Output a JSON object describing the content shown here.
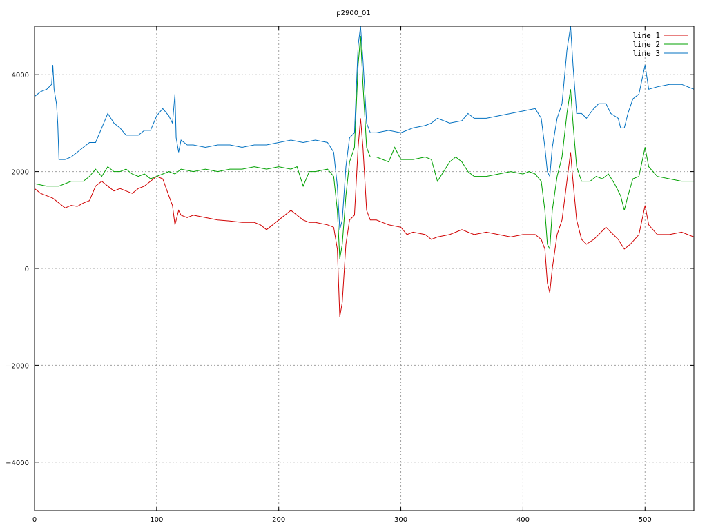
{
  "chart_data": {
    "type": "line",
    "title": "p2900_01",
    "xlabel": "",
    "ylabel": "",
    "xlim": [
      0,
      540
    ],
    "ylim": [
      -5000,
      5000
    ],
    "xticks": [
      0,
      100,
      200,
      300,
      400,
      500
    ],
    "yticks": [
      -4000,
      -2000,
      0,
      2000,
      4000
    ],
    "ytick_labels": [
      "−4000",
      "−2000",
      "0",
      "2000",
      "4000"
    ],
    "grid": true,
    "legend_position": "top-right",
    "series": [
      {
        "name": "line 1",
        "color": "#d00000",
        "points": [
          [
            0,
            1650
          ],
          [
            5,
            1550
          ],
          [
            10,
            1500
          ],
          [
            15,
            1450
          ],
          [
            20,
            1350
          ],
          [
            25,
            1250
          ],
          [
            30,
            1300
          ],
          [
            35,
            1280
          ],
          [
            40,
            1350
          ],
          [
            45,
            1400
          ],
          [
            50,
            1700
          ],
          [
            55,
            1800
          ],
          [
            60,
            1700
          ],
          [
            65,
            1600
          ],
          [
            70,
            1650
          ],
          [
            75,
            1600
          ],
          [
            80,
            1550
          ],
          [
            85,
            1650
          ],
          [
            90,
            1700
          ],
          [
            95,
            1800
          ],
          [
            100,
            1900
          ],
          [
            105,
            1850
          ],
          [
            110,
            1500
          ],
          [
            113,
            1300
          ],
          [
            115,
            900
          ],
          [
            118,
            1200
          ],
          [
            120,
            1100
          ],
          [
            125,
            1050
          ],
          [
            130,
            1100
          ],
          [
            140,
            1050
          ],
          [
            150,
            1000
          ],
          [
            160,
            980
          ],
          [
            170,
            950
          ],
          [
            180,
            950
          ],
          [
            185,
            900
          ],
          [
            190,
            800
          ],
          [
            195,
            900
          ],
          [
            200,
            1000
          ],
          [
            205,
            1100
          ],
          [
            210,
            1200
          ],
          [
            215,
            1100
          ],
          [
            220,
            1000
          ],
          [
            225,
            950
          ],
          [
            230,
            950
          ],
          [
            240,
            900
          ],
          [
            245,
            850
          ],
          [
            248,
            400
          ],
          [
            250,
            -1000
          ],
          [
            252,
            -700
          ],
          [
            255,
            500
          ],
          [
            258,
            1000
          ],
          [
            262,
            1100
          ],
          [
            265,
            2500
          ],
          [
            267,
            3100
          ],
          [
            269,
            2500
          ],
          [
            272,
            1200
          ],
          [
            275,
            1000
          ],
          [
            280,
            1000
          ],
          [
            290,
            900
          ],
          [
            300,
            850
          ],
          [
            305,
            700
          ],
          [
            310,
            750
          ],
          [
            320,
            700
          ],
          [
            325,
            600
          ],
          [
            330,
            650
          ],
          [
            340,
            700
          ],
          [
            345,
            750
          ],
          [
            350,
            800
          ],
          [
            355,
            750
          ],
          [
            360,
            700
          ],
          [
            370,
            750
          ],
          [
            380,
            700
          ],
          [
            390,
            650
          ],
          [
            400,
            700
          ],
          [
            410,
            700
          ],
          [
            415,
            600
          ],
          [
            418,
            400
          ],
          [
            420,
            -300
          ],
          [
            422,
            -500
          ],
          [
            424,
            0
          ],
          [
            428,
            700
          ],
          [
            432,
            1000
          ],
          [
            436,
            1800
          ],
          [
            439,
            2400
          ],
          [
            441,
            1800
          ],
          [
            444,
            1000
          ],
          [
            448,
            600
          ],
          [
            452,
            500
          ],
          [
            458,
            600
          ],
          [
            462,
            700
          ],
          [
            468,
            850
          ],
          [
            472,
            750
          ],
          [
            478,
            600
          ],
          [
            483,
            400
          ],
          [
            488,
            500
          ],
          [
            495,
            700
          ],
          [
            500,
            1300
          ],
          [
            503,
            900
          ],
          [
            510,
            700
          ],
          [
            520,
            700
          ],
          [
            530,
            750
          ],
          [
            540,
            650
          ]
        ]
      },
      {
        "name": "line 2",
        "color": "#00a000",
        "points": [
          [
            0,
            1750
          ],
          [
            10,
            1700
          ],
          [
            20,
            1700
          ],
          [
            30,
            1800
          ],
          [
            40,
            1800
          ],
          [
            45,
            1900
          ],
          [
            50,
            2050
          ],
          [
            55,
            1900
          ],
          [
            60,
            2100
          ],
          [
            65,
            2000
          ],
          [
            70,
            2000
          ],
          [
            75,
            2050
          ],
          [
            80,
            1950
          ],
          [
            85,
            1900
          ],
          [
            90,
            1950
          ],
          [
            95,
            1850
          ],
          [
            100,
            1900
          ],
          [
            105,
            1950
          ],
          [
            110,
            2000
          ],
          [
            115,
            1950
          ],
          [
            120,
            2050
          ],
          [
            130,
            2000
          ],
          [
            140,
            2050
          ],
          [
            150,
            2000
          ],
          [
            160,
            2050
          ],
          [
            170,
            2050
          ],
          [
            180,
            2100
          ],
          [
            190,
            2050
          ],
          [
            200,
            2100
          ],
          [
            210,
            2050
          ],
          [
            215,
            2100
          ],
          [
            220,
            1700
          ],
          [
            225,
            2000
          ],
          [
            230,
            2000
          ],
          [
            240,
            2050
          ],
          [
            245,
            1900
          ],
          [
            248,
            1200
          ],
          [
            250,
            200
          ],
          [
            252,
            500
          ],
          [
            255,
            1500
          ],
          [
            258,
            2200
          ],
          [
            262,
            2500
          ],
          [
            265,
            4200
          ],
          [
            267,
            4800
          ],
          [
            269,
            3800
          ],
          [
            272,
            2500
          ],
          [
            275,
            2300
          ],
          [
            280,
            2300
          ],
          [
            290,
            2200
          ],
          [
            295,
            2500
          ],
          [
            300,
            2250
          ],
          [
            310,
            2250
          ],
          [
            320,
            2300
          ],
          [
            325,
            2250
          ],
          [
            330,
            1800
          ],
          [
            335,
            2000
          ],
          [
            340,
            2200
          ],
          [
            345,
            2300
          ],
          [
            350,
            2200
          ],
          [
            355,
            2000
          ],
          [
            360,
            1900
          ],
          [
            370,
            1900
          ],
          [
            380,
            1950
          ],
          [
            390,
            2000
          ],
          [
            400,
            1950
          ],
          [
            405,
            2000
          ],
          [
            410,
            1950
          ],
          [
            415,
            1800
          ],
          [
            418,
            1200
          ],
          [
            420,
            500
          ],
          [
            422,
            400
          ],
          [
            424,
            1200
          ],
          [
            428,
            1900
          ],
          [
            432,
            2300
          ],
          [
            436,
            3200
          ],
          [
            439,
            3700
          ],
          [
            441,
            3000
          ],
          [
            444,
            2100
          ],
          [
            448,
            1800
          ],
          [
            455,
            1800
          ],
          [
            460,
            1900
          ],
          [
            465,
            1850
          ],
          [
            470,
            1950
          ],
          [
            475,
            1750
          ],
          [
            480,
            1500
          ],
          [
            483,
            1200
          ],
          [
            486,
            1500
          ],
          [
            490,
            1850
          ],
          [
            495,
            1900
          ],
          [
            500,
            2500
          ],
          [
            503,
            2100
          ],
          [
            510,
            1900
          ],
          [
            520,
            1850
          ],
          [
            530,
            1800
          ],
          [
            540,
            1800
          ]
        ]
      },
      {
        "name": "line 3",
        "color": "#0070c0",
        "points": [
          [
            0,
            3550
          ],
          [
            5,
            3650
          ],
          [
            10,
            3700
          ],
          [
            14,
            3800
          ],
          [
            15,
            4200
          ],
          [
            16,
            3700
          ],
          [
            18,
            3400
          ],
          [
            19,
            3000
          ],
          [
            20,
            2250
          ],
          [
            25,
            2250
          ],
          [
            30,
            2300
          ],
          [
            35,
            2400
          ],
          [
            40,
            2500
          ],
          [
            45,
            2600
          ],
          [
            50,
            2600
          ],
          [
            55,
            2900
          ],
          [
            60,
            3200
          ],
          [
            65,
            3000
          ],
          [
            70,
            2900
          ],
          [
            75,
            2750
          ],
          [
            80,
            2750
          ],
          [
            85,
            2750
          ],
          [
            90,
            2850
          ],
          [
            95,
            2850
          ],
          [
            100,
            3150
          ],
          [
            105,
            3300
          ],
          [
            110,
            3150
          ],
          [
            113,
            3000
          ],
          [
            115,
            3600
          ],
          [
            116,
            2700
          ],
          [
            118,
            2400
          ],
          [
            120,
            2650
          ],
          [
            125,
            2550
          ],
          [
            130,
            2550
          ],
          [
            140,
            2500
          ],
          [
            150,
            2550
          ],
          [
            160,
            2550
          ],
          [
            170,
            2500
          ],
          [
            180,
            2550
          ],
          [
            190,
            2550
          ],
          [
            200,
            2600
          ],
          [
            210,
            2650
          ],
          [
            220,
            2600
          ],
          [
            230,
            2650
          ],
          [
            240,
            2600
          ],
          [
            245,
            2400
          ],
          [
            248,
            1700
          ],
          [
            250,
            800
          ],
          [
            252,
            1000
          ],
          [
            255,
            2100
          ],
          [
            258,
            2700
          ],
          [
            262,
            2800
          ],
          [
            265,
            4600
          ],
          [
            267,
            5000
          ],
          [
            269,
            4300
          ],
          [
            272,
            3000
          ],
          [
            275,
            2800
          ],
          [
            280,
            2800
          ],
          [
            290,
            2850
          ],
          [
            300,
            2800
          ],
          [
            310,
            2900
          ],
          [
            320,
            2950
          ],
          [
            325,
            3000
          ],
          [
            330,
            3100
          ],
          [
            340,
            3000
          ],
          [
            350,
            3050
          ],
          [
            355,
            3200
          ],
          [
            360,
            3100
          ],
          [
            370,
            3100
          ],
          [
            380,
            3150
          ],
          [
            390,
            3200
          ],
          [
            400,
            3250
          ],
          [
            410,
            3300
          ],
          [
            415,
            3100
          ],
          [
            418,
            2500
          ],
          [
            420,
            2000
          ],
          [
            422,
            1900
          ],
          [
            424,
            2500
          ],
          [
            428,
            3100
          ],
          [
            432,
            3400
          ],
          [
            436,
            4500
          ],
          [
            439,
            5000
          ],
          [
            441,
            4200
          ],
          [
            444,
            3200
          ],
          [
            448,
            3200
          ],
          [
            452,
            3100
          ],
          [
            458,
            3300
          ],
          [
            462,
            3400
          ],
          [
            468,
            3400
          ],
          [
            472,
            3200
          ],
          [
            478,
            3100
          ],
          [
            480,
            2900
          ],
          [
            483,
            2900
          ],
          [
            486,
            3200
          ],
          [
            490,
            3500
          ],
          [
            495,
            3600
          ],
          [
            500,
            4200
          ],
          [
            503,
            3700
          ],
          [
            510,
            3750
          ],
          [
            520,
            3800
          ],
          [
            530,
            3800
          ],
          [
            540,
            3700
          ]
        ]
      }
    ]
  }
}
